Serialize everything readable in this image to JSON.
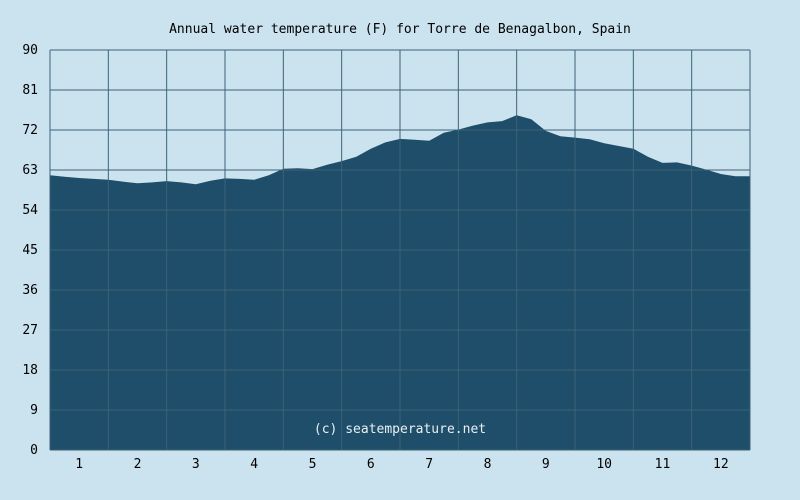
{
  "colors": {
    "background": "#cbe3ef",
    "plot_background": "#cbe3ef",
    "area_fill": "#1e4e69",
    "grid": "#3d6278",
    "text": "#000000",
    "watermark_text": "#e8f0f4"
  },
  "watermark": "(c) seatemperature.net",
  "chart_data": {
    "type": "area",
    "title": "Annual water temperature (F) for Torre de Benagalbon, Spain",
    "xlabel": "",
    "ylabel": "",
    "xlim": [
      0.5,
      12.5
    ],
    "ylim": [
      0,
      90
    ],
    "yticks": [
      0,
      9,
      18,
      27,
      36,
      45,
      54,
      63,
      72,
      81,
      90
    ],
    "xticks": [
      1,
      2,
      3,
      4,
      5,
      6,
      7,
      8,
      9,
      10,
      11,
      12
    ],
    "grid": true,
    "legend": "none",
    "series": [
      {
        "x": [
          0.5,
          0.75,
          1.0,
          1.25,
          1.5,
          1.75,
          2.0,
          2.25,
          2.5,
          2.75,
          3.0,
          3.25,
          3.5,
          3.75,
          4.0,
          4.25,
          4.5,
          4.75,
          5.0,
          5.25,
          5.5,
          5.75,
          6.0,
          6.25,
          6.5,
          6.75,
          7.0,
          7.25,
          7.5,
          7.75,
          8.0,
          8.25,
          8.5,
          8.75,
          9.0,
          9.25,
          9.5,
          9.75,
          10.0,
          10.25,
          10.5,
          10.75,
          11.0,
          11.25,
          11.5,
          11.75,
          12.0,
          12.25,
          12.5
        ],
        "values": [
          61.8,
          61.5,
          61.2,
          61.0,
          60.8,
          60.4,
          60.0,
          60.2,
          60.5,
          60.2,
          59.8,
          60.6,
          61.1,
          61.0,
          60.8,
          61.8,
          63.3,
          63.4,
          63.2,
          64.2,
          65.0,
          66.0,
          67.8,
          69.2,
          70.0,
          69.8,
          69.6,
          71.4,
          72.1,
          73.0,
          73.7,
          74.0,
          75.3,
          74.4,
          71.8,
          70.6,
          70.3,
          69.9,
          69.0,
          68.4,
          67.8,
          66.0,
          64.6,
          64.7,
          64.0,
          63.1,
          62.1,
          61.6,
          61.6
        ]
      }
    ]
  }
}
